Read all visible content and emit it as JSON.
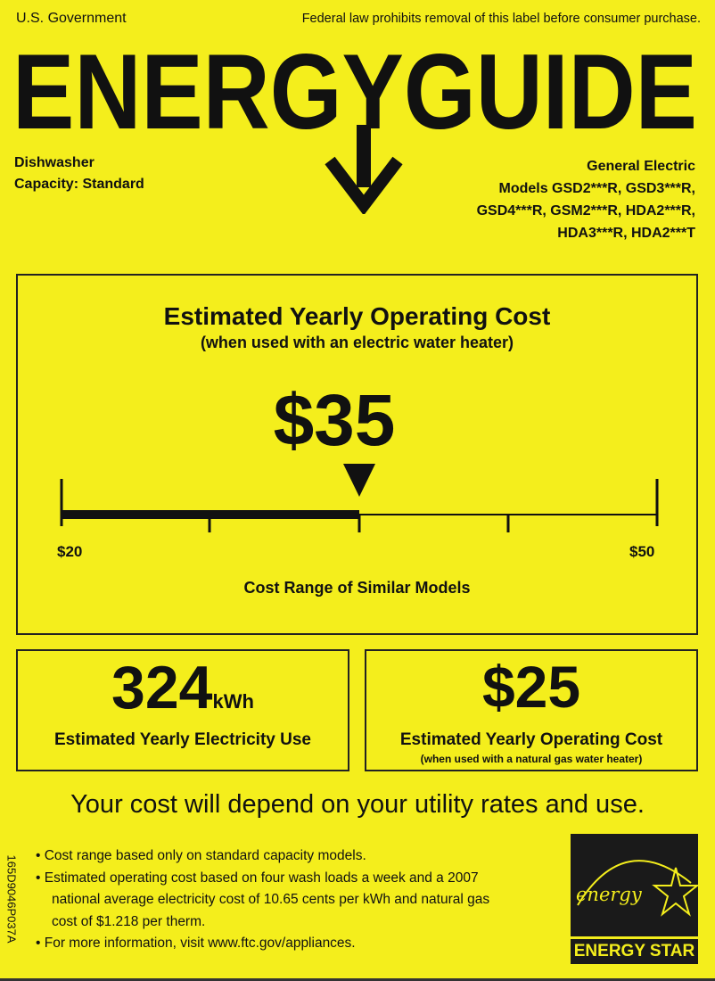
{
  "header": {
    "gov": "U.S. Government",
    "notice": "Federal law prohibits removal of this label before consumer purchase.",
    "title": "ENERGYGUIDE"
  },
  "product": {
    "type": "Dishwasher",
    "capacity": "Capacity: Standard"
  },
  "maker": {
    "brand": "General Electric",
    "models": [
      "Models GSD2***R, GSD3***R,",
      "GSD4***R, GSM2***R, HDA2***R,",
      "HDA3***R, HDA2***T"
    ]
  },
  "main": {
    "title": "Estimated Yearly Operating Cost",
    "subtitle": "(when used with an electric water heater)",
    "cost": "$35",
    "range_min": "$20",
    "range_max": "$50",
    "range_label": "Cost Range of Similar Models",
    "range_min_value": 20,
    "range_max_value": 50,
    "cost_value": 35
  },
  "electricity": {
    "value": "324",
    "unit": "kWh",
    "label": "Estimated Yearly Electricity Use"
  },
  "gas": {
    "value": "$25",
    "label": "Estimated Yearly Operating Cost",
    "sublabel": "(when used with a natural gas water heater)"
  },
  "disclaimer": "Your cost will depend on your utility rates and use.",
  "bullets": [
    "Cost range based only on standard capacity models.",
    "Estimated operating cost based on four wash loads a week and a 2007",
    "national average electricity cost of 10.65 cents per kWh and natural gas",
    "cost of $1.218 per therm.",
    "For more information, visit www.ftc.gov/appliances."
  ],
  "label_code": "165D9046P037A",
  "energy_star": {
    "script": "energy",
    "label": "ENERGY STAR"
  },
  "colors": {
    "background": "#f4ee1c",
    "ink": "#111111"
  }
}
